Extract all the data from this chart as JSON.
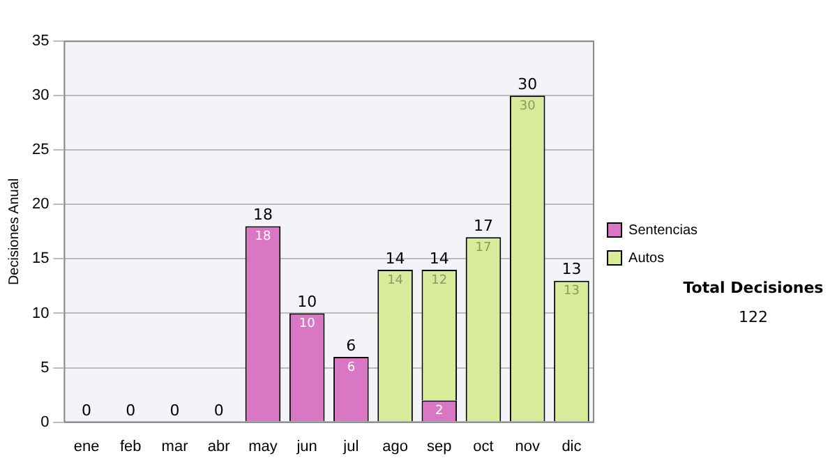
{
  "chart_data": {
    "type": "bar",
    "stacked": true,
    "ylabel": "Decisiones Anual",
    "categories": [
      "ene",
      "feb",
      "mar",
      "abr",
      "may",
      "jun",
      "jul",
      "ago",
      "sep",
      "oct",
      "nov",
      "dic"
    ],
    "series": [
      {
        "name": "Sentencias",
        "color": "#d977c4",
        "values": [
          0,
          0,
          0,
          0,
          18,
          10,
          6,
          0,
          2,
          0,
          0,
          0
        ],
        "value_labels": [
          null,
          null,
          null,
          null,
          "18",
          "10",
          "6",
          null,
          "2",
          null,
          null,
          null
        ]
      },
      {
        "name": "Autos",
        "color": "#d8eb9b",
        "values": [
          0,
          0,
          0,
          0,
          0,
          0,
          0,
          14,
          12,
          17,
          30,
          13
        ],
        "value_labels": [
          null,
          null,
          null,
          null,
          null,
          null,
          null,
          "14",
          "12",
          "17",
          "30",
          "13"
        ]
      }
    ],
    "totals": [
      "0",
      "0",
      "0",
      "0",
      "18",
      "10",
      "6",
      "14",
      "14",
      "17",
      "30",
      "13"
    ],
    "ylim": [
      0,
      35
    ],
    "yticks": [
      0,
      5,
      10,
      15,
      20,
      25,
      30,
      35
    ],
    "grid": "y",
    "legend": "right",
    "annotations": [
      "Total Decisiones",
      "122"
    ]
  }
}
